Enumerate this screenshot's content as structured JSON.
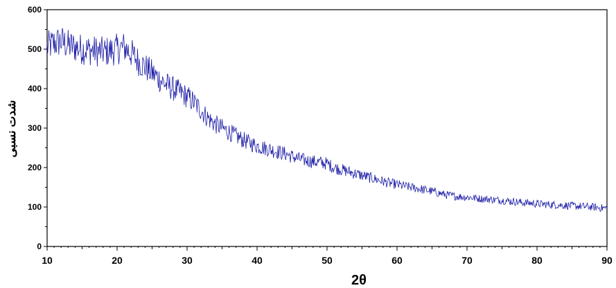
{
  "chart_data": {
    "type": "line",
    "title": "",
    "xlabel": "2θ",
    "ylabel": "شدت نسبی",
    "xlim": [
      10,
      90
    ],
    "ylim": [
      0,
      600
    ],
    "x_ticks": [
      10,
      20,
      30,
      40,
      50,
      60,
      70,
      80,
      90
    ],
    "y_ticks": [
      0,
      100,
      200,
      300,
      400,
      500,
      600
    ],
    "grid": false,
    "series": [
      {
        "color": "#1a1aa6",
        "x": [
          10,
          11,
          12,
          13,
          14,
          15,
          16,
          17,
          18,
          19,
          20,
          21,
          22,
          23,
          24,
          25,
          26,
          27,
          28,
          29,
          30,
          31,
          32,
          33,
          34,
          35,
          36,
          37,
          38,
          39,
          40,
          41,
          42,
          43,
          44,
          45,
          46,
          47,
          48,
          49,
          50,
          51,
          52,
          53,
          54,
          55,
          56,
          57,
          58,
          59,
          60,
          61,
          62,
          63,
          64,
          65,
          66,
          67,
          68,
          69,
          70,
          71,
          72,
          73,
          74,
          75,
          76,
          77,
          78,
          79,
          80,
          81,
          82,
          83,
          84,
          85,
          86,
          87,
          88,
          89,
          90
        ],
        "y": [
          505,
          515,
          520,
          510,
          505,
          500,
          498,
          495,
          493,
          495,
          500,
          505,
          490,
          470,
          455,
          440,
          425,
          410,
          400,
          390,
          380,
          365,
          345,
          325,
          310,
          300,
          290,
          280,
          270,
          262,
          255,
          250,
          245,
          240,
          235,
          228,
          222,
          218,
          215,
          213,
          210,
          200,
          195,
          190,
          185,
          180,
          175,
          170,
          165,
          160,
          157,
          153,
          150,
          147,
          143,
          140,
          135,
          131,
          128,
          126,
          125,
          123,
          121,
          120,
          118,
          117,
          115,
          113,
          111,
          110,
          108,
          107,
          106,
          105,
          104,
          103,
          102,
          101,
          100,
          98,
          97
        ]
      }
    ]
  }
}
